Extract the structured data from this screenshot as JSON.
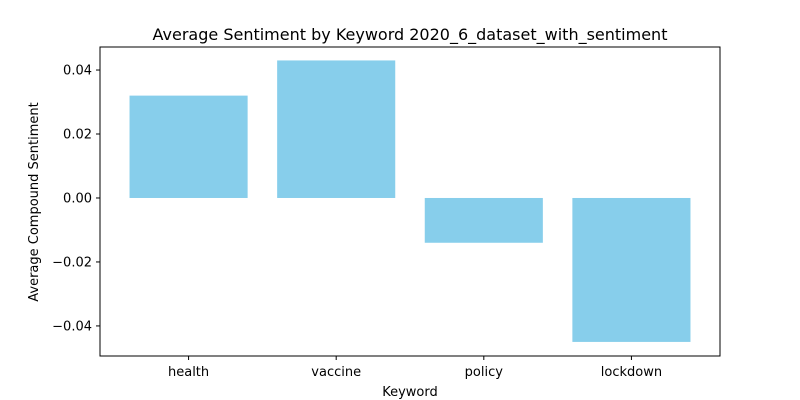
{
  "chart_data": {
    "type": "bar",
    "title": "Average Sentiment by Keyword 2020_6_dataset_with_sentiment",
    "xlabel": "Keyword",
    "ylabel": "Average Compound Sentiment",
    "categories": [
      "health",
      "vaccine",
      "policy",
      "lockdown"
    ],
    "values": [
      0.032,
      0.043,
      -0.014,
      -0.045
    ],
    "ylim": [
      -0.0494,
      0.0472
    ],
    "yticks": [
      -0.04,
      -0.02,
      0.0,
      0.02,
      0.04
    ],
    "ytick_labels": [
      "−0.04",
      "−0.02",
      "0.00",
      "0.02",
      "0.04"
    ],
    "grid": false,
    "legend": "none",
    "bar_color": "#87CEEB"
  }
}
